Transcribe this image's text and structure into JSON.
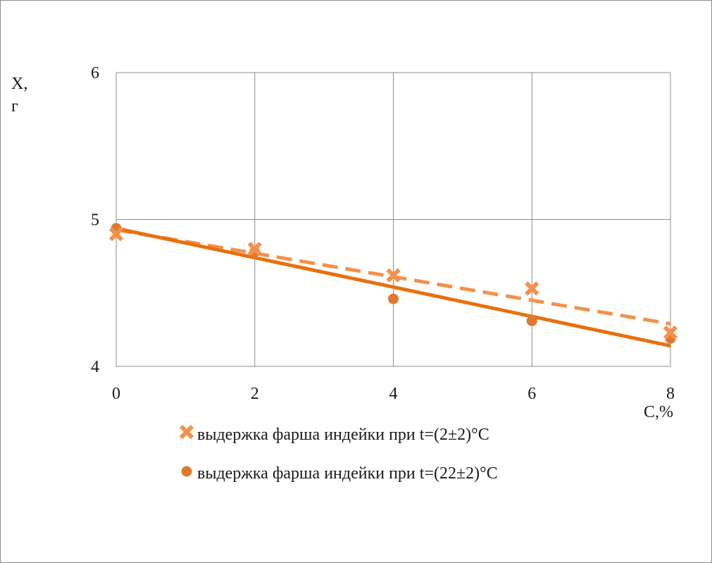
{
  "chart_data": {
    "type": "scatter",
    "ylabel_line1": "X,",
    "ylabel_line2": "г",
    "xlabel": "C,%",
    "xlim": [
      0,
      8
    ],
    "ylim": [
      4,
      6
    ],
    "x_ticks": [
      "0",
      "2",
      "4",
      "6",
      "8"
    ],
    "y_ticks": [
      "4",
      "5",
      "6"
    ],
    "grid": true,
    "legend_position": "bottom",
    "series": [
      {
        "name": "выдержка фарша индейки при t=(2±2)°С",
        "marker": "x-mark",
        "color": "#f4914a",
        "points": [
          {
            "x": 0,
            "y": 4.9
          },
          {
            "x": 2,
            "y": 4.8
          },
          {
            "x": 4,
            "y": 4.62
          },
          {
            "x": 6,
            "y": 4.53
          },
          {
            "x": 8,
            "y": 4.23
          }
        ],
        "trend": {
          "style": "dashed",
          "from": {
            "x": 0,
            "y": 4.93
          },
          "to": {
            "x": 8,
            "y": 4.29
          }
        }
      },
      {
        "name": "выдержка фарша индейки при t=(22±2)°С",
        "marker": "circle",
        "color": "#e07830",
        "points": [
          {
            "x": 0,
            "y": 4.94
          },
          {
            "x": 2,
            "y": 4.78
          },
          {
            "x": 4,
            "y": 4.46
          },
          {
            "x": 6,
            "y": 4.31
          },
          {
            "x": 8,
            "y": 4.19
          }
        ],
        "trend": {
          "style": "solid",
          "color": "#e8700f",
          "from": {
            "x": 0,
            "y": 4.94
          },
          "to": {
            "x": 8,
            "y": 4.14
          }
        }
      }
    ]
  }
}
